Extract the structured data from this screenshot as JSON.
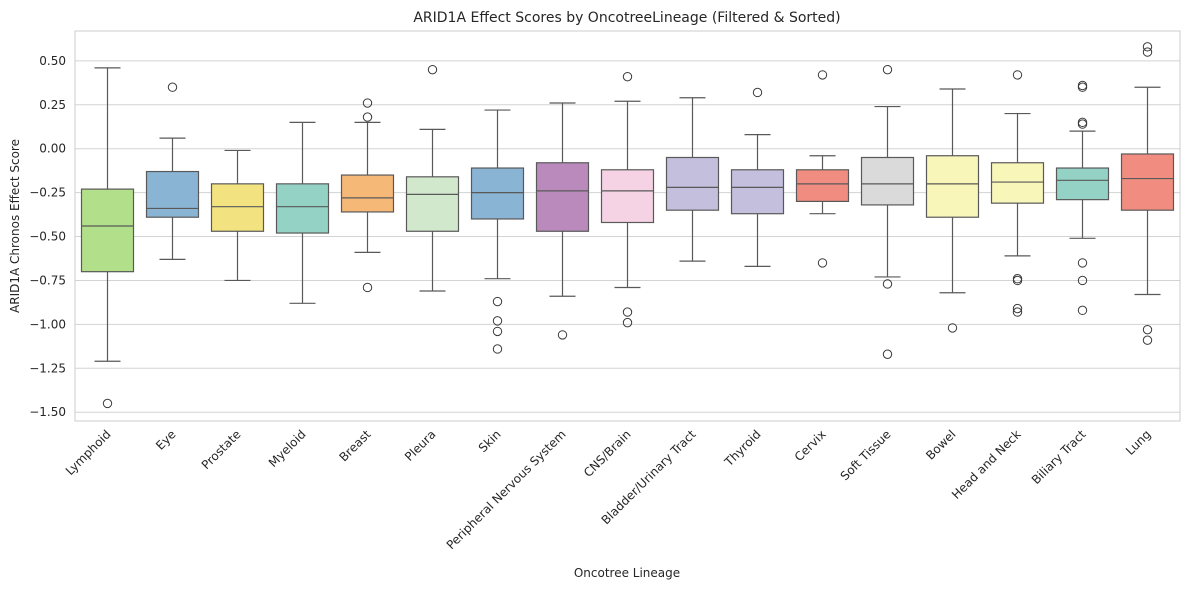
{
  "chart_data": {
    "type": "box",
    "title": "ARID1A Effect Scores by OncotreeLineage (Filtered & Sorted)",
    "xlabel": "Oncotree Lineage",
    "ylabel": "ARID1A Chronos Effect Score",
    "ylim": [
      -1.55,
      0.67
    ],
    "yticks": [
      0.5,
      0.25,
      0.0,
      -0.25,
      -0.5,
      -0.75,
      -1.0,
      -1.25,
      -1.5
    ],
    "ytick_labels": [
      "0.50",
      "0.25",
      "0.00",
      "−0.25",
      "−0.50",
      "−0.75",
      "−1.00",
      "−1.25",
      "−1.50"
    ],
    "grid": "horizontal",
    "boxes": [
      {
        "category": "Lymphoid",
        "color": "#b2df8a",
        "q1": -0.7,
        "median": -0.44,
        "q3": -0.23,
        "whislo": -1.21,
        "whishi": 0.46,
        "outliers": [
          -1.45
        ]
      },
      {
        "category": "Eye",
        "color": "#8ab4d4",
        "q1": -0.39,
        "median": -0.34,
        "q3": -0.13,
        "whislo": -0.63,
        "whishi": 0.06,
        "outliers": [
          0.35
        ]
      },
      {
        "category": "Prostate",
        "color": "#f3e380",
        "q1": -0.47,
        "median": -0.33,
        "q3": -0.2,
        "whislo": -0.75,
        "whishi": -0.01,
        "outliers": []
      },
      {
        "category": "Myeloid",
        "color": "#94d2c6",
        "q1": -0.48,
        "median": -0.33,
        "q3": -0.2,
        "whislo": -0.88,
        "whishi": 0.15,
        "outliers": []
      },
      {
        "category": "Breast",
        "color": "#f5b877",
        "q1": -0.36,
        "median": -0.28,
        "q3": -0.15,
        "whislo": -0.59,
        "whishi": 0.15,
        "outliers": [
          0.26,
          0.18,
          -0.79
        ]
      },
      {
        "category": "Pleura",
        "color": "#d1e8cd",
        "q1": -0.47,
        "median": -0.26,
        "q3": -0.16,
        "whislo": -0.81,
        "whishi": 0.11,
        "outliers": [
          0.45
        ]
      },
      {
        "category": "Skin",
        "color": "#8ab4d4",
        "q1": -0.4,
        "median": -0.25,
        "q3": -0.11,
        "whislo": -0.74,
        "whishi": 0.22,
        "outliers": [
          -0.87,
          -0.98,
          -1.04,
          -1.14
        ]
      },
      {
        "category": "Peripheral Nervous System",
        "color": "#b98abb",
        "q1": -0.47,
        "median": -0.24,
        "q3": -0.08,
        "whislo": -0.84,
        "whishi": 0.26,
        "outliers": [
          -1.06
        ]
      },
      {
        "category": "CNS/Brain",
        "color": "#f6d3e4",
        "q1": -0.42,
        "median": -0.24,
        "q3": -0.12,
        "whislo": -0.79,
        "whishi": 0.27,
        "outliers": [
          0.41,
          -0.93,
          -0.99
        ]
      },
      {
        "category": "Bladder/Urinary Tract",
        "color": "#c3bfdc",
        "q1": -0.35,
        "median": -0.22,
        "q3": -0.05,
        "whislo": -0.64,
        "whishi": 0.29,
        "outliers": []
      },
      {
        "category": "Thyroid",
        "color": "#c3bfdc",
        "q1": -0.37,
        "median": -0.22,
        "q3": -0.12,
        "whislo": -0.67,
        "whishi": 0.08,
        "outliers": [
          0.32
        ]
      },
      {
        "category": "Cervix",
        "color": "#f08c80",
        "q1": -0.3,
        "median": -0.2,
        "q3": -0.12,
        "whislo": -0.37,
        "whishi": -0.04,
        "outliers": [
          0.42,
          -0.65
        ]
      },
      {
        "category": "Soft Tissue",
        "color": "#dadada",
        "q1": -0.32,
        "median": -0.2,
        "q3": -0.05,
        "whislo": -0.73,
        "whishi": 0.24,
        "outliers": [
          0.45,
          -0.77,
          -1.17
        ]
      },
      {
        "category": "Bowel",
        "color": "#f8f6b9",
        "q1": -0.39,
        "median": -0.2,
        "q3": -0.04,
        "whislo": -0.82,
        "whishi": 0.34,
        "outliers": [
          -1.02
        ]
      },
      {
        "category": "Head and Neck",
        "color": "#f8f6b9",
        "q1": -0.31,
        "median": -0.19,
        "q3": -0.08,
        "whislo": -0.61,
        "whishi": 0.2,
        "outliers": [
          0.42,
          -0.74,
          -0.75,
          -0.91,
          -0.93
        ]
      },
      {
        "category": "Biliary Tract",
        "color": "#94d2c6",
        "q1": -0.29,
        "median": -0.18,
        "q3": -0.11,
        "whislo": -0.51,
        "whishi": 0.1,
        "outliers": [
          0.36,
          0.35,
          0.15,
          0.14,
          -0.65,
          -0.75,
          -0.92
        ]
      },
      {
        "category": "Lung",
        "color": "#f08c80",
        "q1": -0.35,
        "median": -0.17,
        "q3": -0.03,
        "whislo": -0.83,
        "whishi": 0.35,
        "outliers": [
          0.58,
          0.55,
          -1.03,
          -1.09
        ]
      }
    ]
  }
}
